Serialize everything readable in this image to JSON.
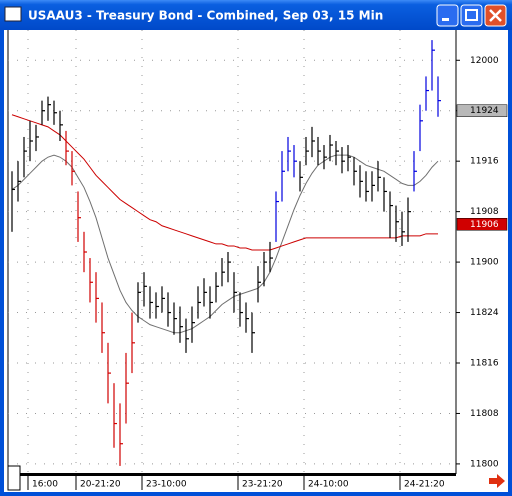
{
  "chart_data": {
    "type": "ohlc",
    "title": "USAAU3 - Treasury Bond - Combined, Sep 03, 15 Min",
    "categories": [
      null,
      null,
      null,
      "16:00",
      null,
      null,
      null,
      null,
      null,
      null,
      null,
      "20-21:20",
      null,
      null,
      null,
      null,
      null,
      null,
      null,
      null,
      null,
      null,
      "23-10:00",
      null,
      null,
      null,
      null,
      null,
      null,
      null,
      null,
      null,
      null,
      null,
      null,
      null,
      null,
      null,
      "23-21:20",
      null,
      null,
      null,
      null,
      null,
      null,
      null,
      null,
      null,
      null,
      "24-10:00",
      null,
      null,
      null,
      null,
      null,
      null,
      null,
      null,
      null,
      null,
      null,
      null,
      null,
      null,
      null,
      "24-21:20",
      null,
      null,
      null,
      null,
      null,
      null
    ],
    "high": [
      119.45,
      119.5,
      119.62,
      119.7,
      119.68,
      119.8,
      119.82,
      119.8,
      119.75,
      119.65,
      119.55,
      119.35,
      119.15,
      119.02,
      118.95,
      118.8,
      118.6,
      118.4,
      118.3,
      118.55,
      118.75,
      118.9,
      118.95,
      118.88,
      118.85,
      118.88,
      118.85,
      118.8,
      118.78,
      118.72,
      118.78,
      118.88,
      118.92,
      118.88,
      118.95,
      119.02,
      119.05,
      118.95,
      118.85,
      118.8,
      118.75,
      118.98,
      119.05,
      119.1,
      119.35,
      119.55,
      119.62,
      119.58,
      119.5,
      119.62,
      119.67,
      119.62,
      119.58,
      119.63,
      119.6,
      119.57,
      119.58,
      119.52,
      119.48,
      119.45,
      119.45,
      119.5,
      119.42,
      119.35,
      119.28,
      119.25,
      119.32,
      119.55,
      119.78,
      119.92,
      120.1,
      119.92
    ],
    "low": [
      119.15,
      119.3,
      119.42,
      119.5,
      119.55,
      119.68,
      119.7,
      119.68,
      119.6,
      119.48,
      119.38,
      119.1,
      118.95,
      118.8,
      118.7,
      118.55,
      118.3,
      118.08,
      117.99,
      118.2,
      118.45,
      118.7,
      118.78,
      118.72,
      118.72,
      118.75,
      118.68,
      118.64,
      118.6,
      118.55,
      118.6,
      118.72,
      118.78,
      118.72,
      118.8,
      118.88,
      118.9,
      118.75,
      118.68,
      118.65,
      118.55,
      118.8,
      118.88,
      118.95,
      119.1,
      119.3,
      119.45,
      119.42,
      119.35,
      119.48,
      119.52,
      119.48,
      119.46,
      119.5,
      119.48,
      119.44,
      119.45,
      119.38,
      119.32,
      119.3,
      119.3,
      119.35,
      119.25,
      119.12,
      119.1,
      119.08,
      119.1,
      119.35,
      119.55,
      119.75,
      119.85,
      119.72
    ],
    "close": [
      119.36,
      119.4,
      119.55,
      119.6,
      119.62,
      119.75,
      119.78,
      119.74,
      119.68,
      119.55,
      119.45,
      119.22,
      119.05,
      118.9,
      118.82,
      118.65,
      118.45,
      118.2,
      118.1,
      118.4,
      118.6,
      118.85,
      118.88,
      118.8,
      118.78,
      118.82,
      118.75,
      118.72,
      118.68,
      118.62,
      118.7,
      118.8,
      118.85,
      118.8,
      118.88,
      118.95,
      119.0,
      118.85,
      118.75,
      118.72,
      118.65,
      118.9,
      119.0,
      119.02,
      119.3,
      119.45,
      119.55,
      119.5,
      119.42,
      119.55,
      119.6,
      119.55,
      119.52,
      119.58,
      119.55,
      119.5,
      119.52,
      119.45,
      119.4,
      119.35,
      119.38,
      119.42,
      119.35,
      119.28,
      119.2,
      119.15,
      119.25,
      119.45,
      119.7,
      119.85,
      120.05,
      119.8
    ],
    "bar_colors": [
      "#000000",
      "#000000",
      "#000000",
      "#000000",
      "#000000",
      "#000000",
      "#000000",
      "#000000",
      "#000000",
      "#d00000",
      "#d00000",
      "#d00000",
      "#d00000",
      "#d00000",
      "#d00000",
      "#d00000",
      "#d00000",
      "#d00000",
      "#d00000",
      "#d00000",
      "#d00000",
      "#000000",
      "#000000",
      "#000000",
      "#000000",
      "#000000",
      "#000000",
      "#000000",
      "#000000",
      "#000000",
      "#000000",
      "#000000",
      "#000000",
      "#000000",
      "#000000",
      "#000000",
      "#000000",
      "#000000",
      "#000000",
      "#000000",
      "#000000",
      "#000000",
      "#000000",
      "#000000",
      "#0000e0",
      "#0000e0",
      "#0000e0",
      "#0000e0",
      "#000000",
      "#000000",
      "#000000",
      "#000000",
      "#000000",
      "#000000",
      "#000000",
      "#000000",
      "#000000",
      "#000000",
      "#000000",
      "#000000",
      "#000000",
      "#000000",
      "#000000",
      "#000000",
      "#000000",
      "#000000",
      "#000000",
      "#0000e0",
      "#0000e0",
      "#0000e0",
      "#0000e0",
      "#0000e0"
    ],
    "lines": [
      {
        "color": "#707070",
        "values": [
          119.36,
          119.38,
          119.41,
          119.44,
          119.47,
          119.5,
          119.52,
          119.53,
          119.52,
          119.5,
          119.47,
          119.42,
          119.37,
          119.3,
          119.22,
          119.12,
          119.02,
          118.94,
          118.86,
          118.8,
          118.76,
          118.73,
          118.71,
          118.69,
          118.68,
          118.67,
          118.66,
          118.65,
          118.65,
          118.66,
          118.67,
          118.69,
          118.71,
          118.73,
          118.76,
          118.79,
          118.81,
          118.83,
          118.84,
          118.85,
          118.86,
          118.87,
          118.9,
          118.95,
          119.02,
          119.1,
          119.18,
          119.26,
          119.33,
          119.39,
          119.44,
          119.48,
          119.5,
          119.52,
          119.53,
          119.53,
          119.53,
          119.52,
          119.5,
          119.48,
          119.47,
          119.46,
          119.45,
          119.43,
          119.41,
          119.39,
          119.38,
          119.38,
          119.4,
          119.43,
          119.47,
          119.5
        ]
      },
      {
        "color": "#cc0000",
        "values": [
          119.73,
          119.72,
          119.71,
          119.7,
          119.69,
          119.68,
          119.67,
          119.65,
          119.63,
          119.6,
          119.57,
          119.54,
          119.51,
          119.47,
          119.43,
          119.4,
          119.37,
          119.34,
          119.31,
          119.29,
          119.27,
          119.25,
          119.23,
          119.21,
          119.2,
          119.18,
          119.17,
          119.16,
          119.15,
          119.14,
          119.13,
          119.12,
          119.11,
          119.1,
          119.09,
          119.09,
          119.08,
          119.08,
          119.07,
          119.07,
          119.06,
          119.06,
          119.06,
          119.06,
          119.07,
          119.08,
          119.09,
          119.1,
          119.11,
          119.12,
          119.12,
          119.12,
          119.12,
          119.12,
          119.12,
          119.12,
          119.12,
          119.12,
          119.12,
          119.12,
          119.12,
          119.12,
          119.12,
          119.12,
          119.12,
          119.13,
          119.13,
          119.13,
          119.13,
          119.14,
          119.14,
          119.14
        ]
      }
    ],
    "ylim": [
      117.95,
      120.15
    ],
    "yticks": [
      {
        "value": 120,
        "label": "12000"
      },
      {
        "value": 119.75,
        "label": "11924"
      },
      {
        "value": 119.5,
        "label": "11916"
      },
      {
        "value": 119.25,
        "label": "11908"
      },
      {
        "value": 119,
        "label": "11900"
      },
      {
        "value": 118.75,
        "label": "11824"
      },
      {
        "value": 118.5,
        "label": "11816"
      },
      {
        "value": 118.25,
        "label": "11808"
      },
      {
        "value": 118,
        "label": "11800"
      }
    ],
    "last_value_labels": [
      {
        "value": 119.75,
        "label": "11924",
        "color": "#b8b8b8",
        "text_color": "#000000"
      },
      {
        "value": 119.1875,
        "label": "11906",
        "color": "#d00000",
        "text_color": "#ffffff"
      }
    ],
    "grid": true
  }
}
